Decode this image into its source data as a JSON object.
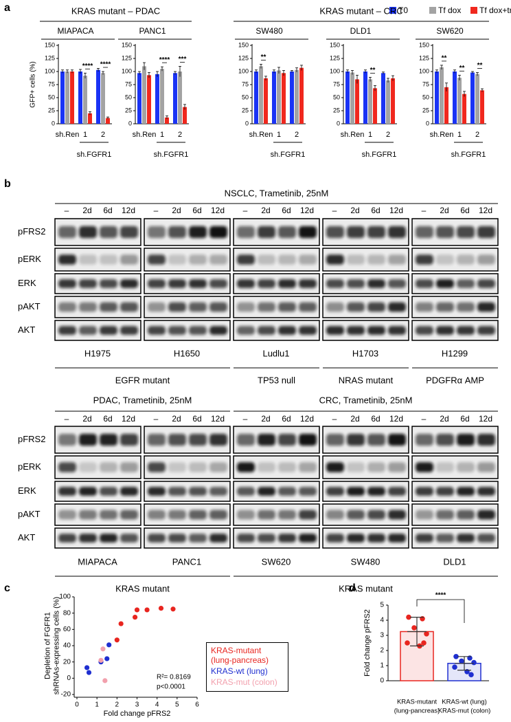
{
  "panel_labels": [
    "a",
    "b",
    "c",
    "d"
  ],
  "chart_data": [
    {
      "type": "faceted_bar",
      "ylabel": "GFP+ cells (%)",
      "ylim": [
        0,
        150
      ],
      "yticks": [
        0,
        25,
        50,
        75,
        100,
        125,
        150
      ],
      "series": [
        {
          "name": "T0",
          "color": "#1a33f5"
        },
        {
          "name": "Tf dox",
          "color": "#a3a3a3"
        },
        {
          "name": "Tf dox+tram.",
          "color": "#f0281e"
        }
      ],
      "categories": [
        "sh.Ren",
        "1",
        "2"
      ],
      "subgroup_label": "sh.FGFR1",
      "groups": [
        {
          "label": "KRAS mutant – PDAC",
          "facets": [
            {
              "title": "MIAPACA",
              "values": [
                [
                  100,
                  100,
                  103
                ],
                [
                  100,
                  92,
                  97
                ],
                [
                  100,
                  20,
                  11
                ]
              ],
              "errors": [
                [
                  3,
                  4,
                  3
                ],
                [
                  3,
                  5,
                  3
                ],
                [
                  3,
                  3,
                  2
                ]
              ],
              "significance": [
                null,
                "****",
                "****"
              ]
            },
            {
              "title": "PANC1",
              "values": [
                [
                  97,
                  95,
                  97
                ],
                [
                  110,
                  105,
                  100
                ],
                [
                  93,
                  12,
                  32
                ]
              ],
              "errors": [
                [
                  3,
                  5,
                  3
                ],
                [
                  7,
                  4,
                  10
                ],
                [
                  5,
                  3,
                  5
                ]
              ],
              "significance": [
                null,
                "****",
                "***"
              ]
            }
          ]
        },
        {
          "label": "KRAS mutant – CRC",
          "facets": [
            {
              "title": "SW480",
              "values": [
                [
                  100,
                  100,
                  100
                ],
                [
                  110,
                  102,
                  103
                ],
                [
                  87,
                  97,
                  107
                ]
              ],
              "errors": [
                [
                  3,
                  3,
                  2
                ],
                [
                  4,
                  6,
                  4
                ],
                [
                  4,
                  5,
                  5
                ]
              ],
              "significance": [
                "**",
                null,
                null
              ]
            },
            {
              "title": "DLD1",
              "values": [
                [
                  100,
                  100,
                  97
                ],
                [
                  98,
                  85,
                  83
                ],
                [
                  85,
                  68,
                  87
                ]
              ],
              "errors": [
                [
                  3,
                  3,
                  2
                ],
                [
                  4,
                  4,
                  4
                ],
                [
                  8,
                  5,
                  5
                ]
              ],
              "significance": [
                null,
                "**",
                null
              ]
            },
            {
              "title": "SW620",
              "values": [
                [
                  100,
                  100,
                  98
                ],
                [
                  108,
                  88,
                  95
                ],
                [
                  70,
                  57,
                  64
                ]
              ],
              "errors": [
                [
                  3,
                  3,
                  2
                ],
                [
                  4,
                  5,
                  3
                ],
                [
                  8,
                  5,
                  3
                ]
              ],
              "significance": [
                "**",
                "**",
                "**"
              ]
            }
          ]
        }
      ]
    },
    {
      "type": "scatter",
      "xlabel": "Fold change pFRS2",
      "ylabel": "Depletion of FGFR1\nshRNAs-expressing cells (%)",
      "xlim": [
        0,
        6
      ],
      "xticks": [
        0,
        1,
        2,
        3,
        4,
        5,
        6
      ],
      "ylim": [
        -20,
        100
      ],
      "yticks": [
        -20,
        0,
        20,
        40,
        60,
        80,
        100
      ],
      "series": [
        {
          "name": "KRAS-mutant\n(lung-pancreas)",
          "color": "#e8251f",
          "x": [
            2.0,
            2.2,
            2.9,
            3.0,
            3.5,
            4.2,
            4.8
          ],
          "values": [
            47,
            67,
            75,
            84,
            84,
            86,
            85
          ]
        },
        {
          "name": "KRAS-wt (lung)",
          "color": "#1f2fd0",
          "x": [
            0.5,
            0.6,
            1.2,
            1.5,
            1.6
          ],
          "values": [
            13,
            7,
            20,
            24,
            41
          ]
        },
        {
          "name": "KRAS-mut (colon)",
          "color": "#f2a0ad",
          "x": [
            1.2,
            1.3,
            1.4
          ],
          "values": [
            22,
            36,
            -3
          ]
        }
      ],
      "annotations": [
        "R²= 0.8169",
        "p<0.0001"
      ]
    },
    {
      "type": "bar_dots",
      "ylabel": "Fold change pFRS2",
      "categories": [
        "KRAS-mutant\n(lung-pancreas)",
        "KRAS-wt (lung)\nKRAS-mut (colon)"
      ],
      "values": [
        3.25,
        1.15
      ],
      "errors": [
        0.95,
        0.45
      ],
      "colors": [
        "#e8251f",
        "#1f2fd0"
      ],
      "points": [
        [
          4.2,
          4.1,
          3.5,
          3.1,
          2.5,
          2.3,
          2.5
        ],
        [
          1.6,
          1.5,
          1.3,
          1.2,
          0.9,
          0.6,
          0.4
        ]
      ],
      "ylim": [
        0,
        5
      ],
      "yticks": [
        0,
        1,
        2,
        3,
        4,
        5
      ],
      "significance": "****"
    }
  ],
  "blots": {
    "lanes": [
      "–",
      "2d",
      "6d",
      "12d"
    ],
    "proteins": [
      "pFRS2",
      "pERK",
      "ERK",
      "pAKT",
      "AKT"
    ],
    "blocks": [
      {
        "headers": [
          {
            "label": "NSCLC, Trametinib, 25nM",
            "groups": [
              {
                "label": "EGFR mutant",
                "cell_lines": [
                  "H1975",
                  "H1650"
                ]
              },
              {
                "label": "TP53 null",
                "cell_lines": [
                  "Ludlu1"
                ]
              },
              {
                "label": "NRAS mutant",
                "cell_lines": [
                  "H1703"
                ]
              },
              {
                "label": "PDGFRα AMP",
                "cell_lines": [
                  "H1299"
                ]
              }
            ]
          }
        ]
      },
      {
        "headers": [
          {
            "label": "PDAC, Trametinib, 25nM",
            "groups": [
              {
                "label": "KRAS mutant",
                "cell_lines": [
                  "MIAPACA",
                  "PANC1"
                ]
              }
            ]
          },
          {
            "label": "CRC, Trametinib, 25nM",
            "groups": [
              {
                "label": "KRAS mutant",
                "cell_lines": [
                  "SW620",
                  "SW480",
                  "DLD1"
                ]
              }
            ]
          }
        ]
      }
    ]
  }
}
